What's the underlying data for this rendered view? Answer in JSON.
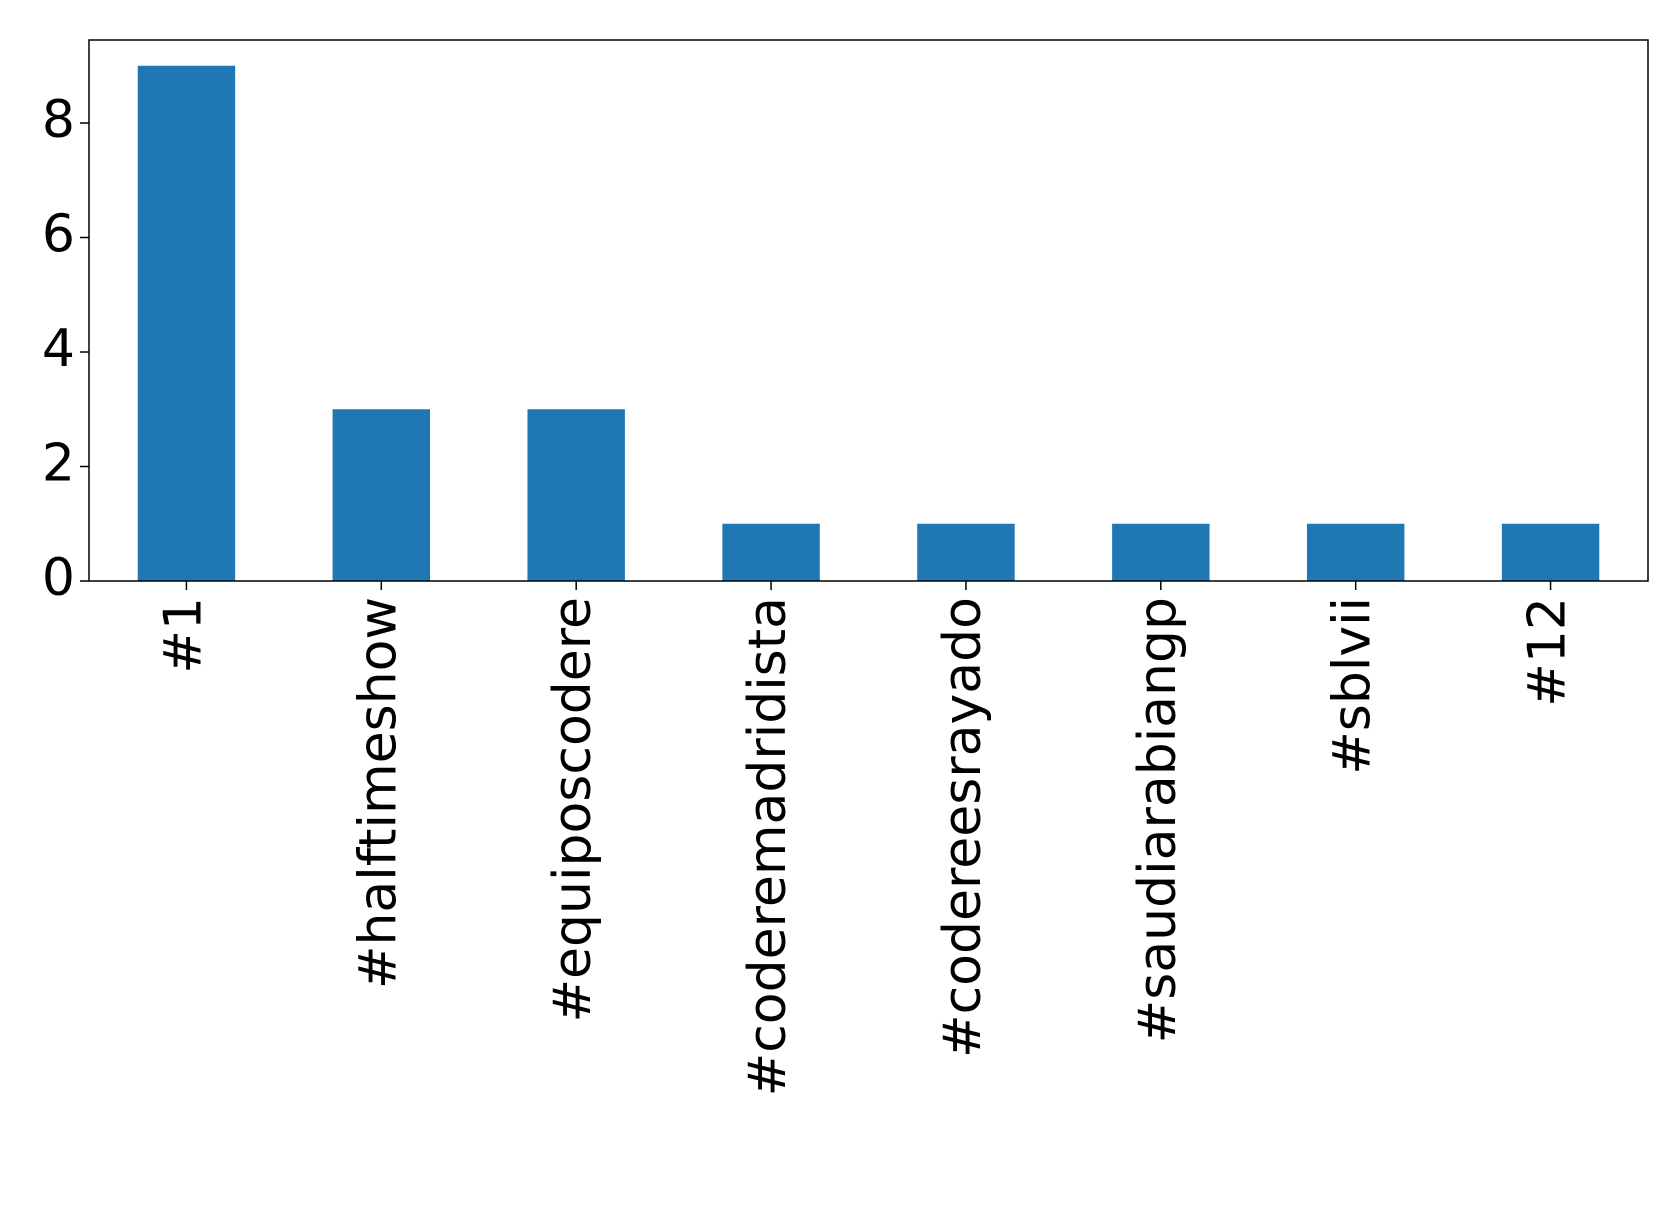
{
  "chart_data": {
    "type": "bar",
    "categories": [
      "#1",
      "#halftimeshow",
      "#equiposcodere",
      "#coderemadridista",
      "#codereesrayado",
      "#saudiarabiangp",
      "#sblvii",
      "#12"
    ],
    "values": [
      9,
      3,
      3,
      1,
      1,
      1,
      1,
      1
    ],
    "color": "#1f77b4",
    "ylim": [
      0,
      9.45
    ],
    "yticks": [
      0,
      2,
      4,
      6,
      8
    ],
    "grid": false
  }
}
